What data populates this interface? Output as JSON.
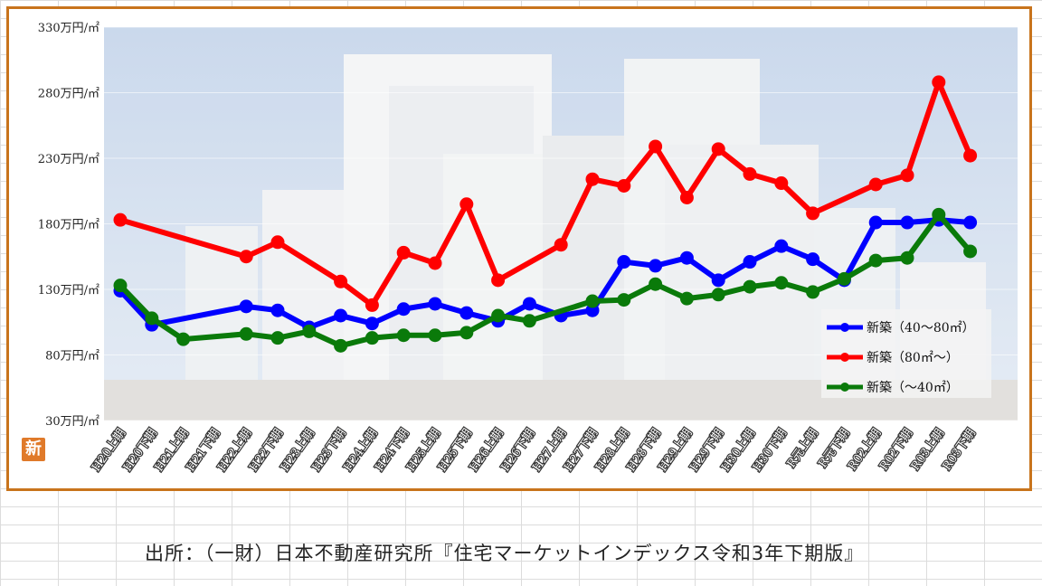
{
  "source_text": "出所：（一財）日本不動産研究所『住宅マーケットインデックス令和3年下期版』",
  "badge_text": "新",
  "colors": {
    "frame": "#c8741c",
    "sky": "#c9d7ea",
    "building": "#eef0f2",
    "s1": "#0000ff",
    "s2": "#ff0000",
    "s3": "#0a7a0a"
  },
  "chart_data": {
    "type": "line",
    "title": "",
    "xlabel": "",
    "ylabel": "",
    "ylim": [
      30,
      330
    ],
    "y_ticks": [
      30,
      80,
      130,
      180,
      230,
      280,
      330
    ],
    "y_tick_labels": [
      "30万円/㎡",
      "80万円/㎡",
      "130万円/㎡",
      "180万円/㎡",
      "230万円/㎡",
      "280万円/㎡",
      "330万円/㎡"
    ],
    "categories": [
      "H20上期",
      "H20下期",
      "H21上期",
      "H21下期",
      "H22上期",
      "H22下期",
      "H23上期",
      "H23下期",
      "H24上期",
      "H24下期",
      "H25上期",
      "H25下期",
      "H26上期",
      "H26下期",
      "H27上期",
      "H27下期",
      "H28上期",
      "H28下期",
      "H29上期",
      "H29下期",
      "H30上期",
      "H30下期",
      "R元上期",
      "R元下期",
      "R02上期",
      "R02下期",
      "R03上期",
      "R03下期"
    ],
    "legend_position": "right",
    "series": [
      {
        "name": "新築（40～80㎡）",
        "color": "#0000ff",
        "values": [
          129,
          103,
          null,
          null,
          117,
          114,
          101,
          110,
          104,
          115,
          119,
          112,
          106,
          119,
          110,
          114,
          151,
          148,
          154,
          137,
          151,
          163,
          153,
          137,
          181,
          181,
          183,
          181
        ]
      },
      {
        "name": "新築（80㎡～）",
        "color": "#ff0000",
        "values": [
          183,
          null,
          null,
          null,
          155,
          166,
          null,
          136,
          118,
          158,
          150,
          195,
          137,
          null,
          164,
          214,
          209,
          239,
          200,
          237,
          218,
          211,
          188,
          null,
          210,
          217,
          288,
          232
        ]
      },
      {
        "name": "新築（～40㎡）",
        "color": "#0a7a0a",
        "values": [
          133,
          108,
          92,
          null,
          96,
          93,
          98,
          87,
          93,
          95,
          95,
          97,
          110,
          106,
          null,
          121,
          122,
          134,
          123,
          126,
          132,
          135,
          128,
          138,
          152,
          154,
          187,
          159
        ]
      }
    ]
  }
}
